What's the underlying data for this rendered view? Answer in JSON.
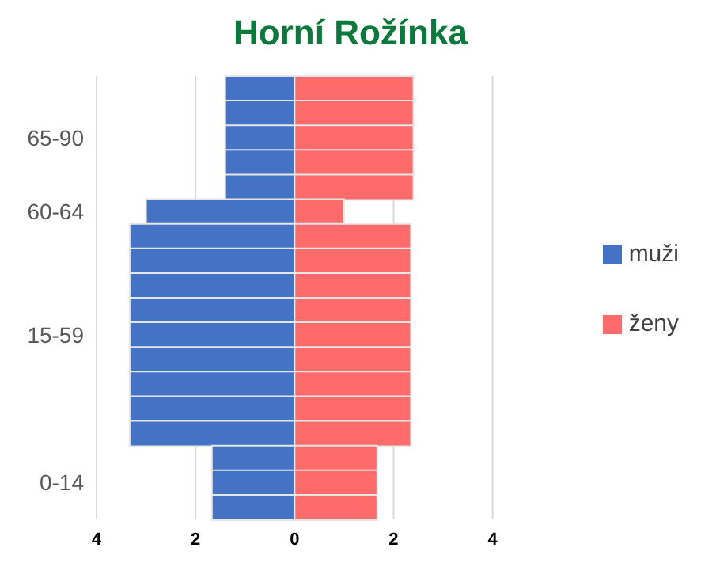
{
  "chart_data": {
    "type": "bar",
    "title": "Horní Rožínka",
    "orientation": "horizontal",
    "stacked": true,
    "categories": [
      null,
      null,
      "65-90",
      null,
      null,
      "60-64",
      null,
      null,
      null,
      null,
      "15-59",
      null,
      null,
      null,
      null,
      null,
      "0-14",
      null
    ],
    "series": [
      {
        "name": "muži",
        "color": "#4472c4",
        "values": [
          -1.4,
          -1.4,
          -1.4,
          -1.4,
          -1.4,
          -3.0,
          -3.33,
          -3.33,
          -3.33,
          -3.33,
          -3.33,
          -3.33,
          -3.33,
          -3.33,
          -3.33,
          -1.67,
          -1.67,
          -1.67
        ]
      },
      {
        "name": "ženy",
        "color": "#ff6b6b",
        "values": [
          2.4,
          2.4,
          2.4,
          2.4,
          2.4,
          1.0,
          2.35,
          2.35,
          2.35,
          2.35,
          2.35,
          2.35,
          2.35,
          2.35,
          2.35,
          1.67,
          1.67,
          1.67
        ]
      }
    ],
    "xlim": [
      -4,
      4
    ],
    "xticks": [
      {
        "value": -4,
        "label": "4"
      },
      {
        "value": -2,
        "label": "2"
      },
      0,
      2,
      4
    ],
    "grid": "x",
    "legend": "right"
  }
}
